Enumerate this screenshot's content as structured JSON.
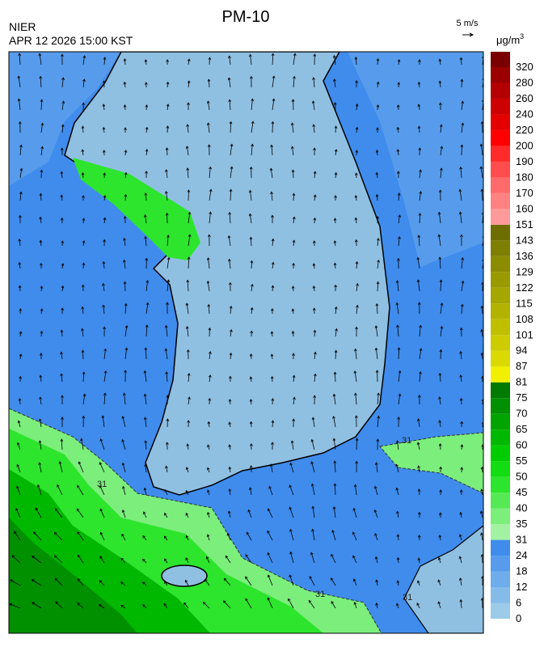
{
  "header": {
    "title": "PM-10",
    "agency": "NIER",
    "datetime": "APR 12 2026 15:00 KST",
    "wind_scale": "5 m/s",
    "unit": "μg/m",
    "unit_sup": "3"
  },
  "colorbar": {
    "levels": [
      0,
      6,
      12,
      18,
      24,
      31,
      35,
      40,
      45,
      50,
      55,
      60,
      65,
      70,
      75,
      81,
      87,
      94,
      101,
      108,
      115,
      122,
      129,
      136,
      143,
      151,
      160,
      170,
      180,
      190,
      200,
      220,
      240,
      260,
      280,
      320
    ],
    "colors": [
      "#9ccbe9",
      "#85bbe9",
      "#6eaceb",
      "#579cec",
      "#3f8ced",
      "#a2f2a2",
      "#7cee7c",
      "#55ea55",
      "#2de52d",
      "#12dc12",
      "#00cc00",
      "#00b800",
      "#00a400",
      "#009000",
      "#007a00",
      "#f0f000",
      "#dada00",
      "#cccc00",
      "#bfbf00",
      "#b2b200",
      "#a6a600",
      "#999900",
      "#8c8c00",
      "#7e7e00",
      "#6e6e00",
      "#ff9a9a",
      "#ff8282",
      "#ff6a6a",
      "#ff4c4c",
      "#ff2a2a",
      "#ff0000",
      "#e40000",
      "#cc0000",
      "#b40000",
      "#9a0000",
      "#7a0000"
    ]
  },
  "map": {
    "contour_labels": [
      "31",
      "31",
      "31",
      "31"
    ]
  }
}
